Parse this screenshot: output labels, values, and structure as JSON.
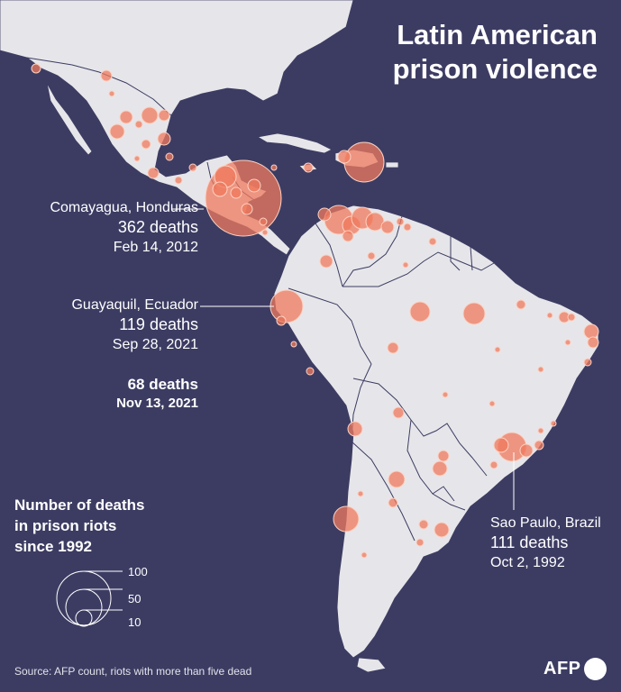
{
  "title": {
    "line1": "Latin American",
    "line2": "prison violence"
  },
  "callouts": {
    "honduras": {
      "place": "Comayagua, Honduras",
      "deaths": "362 deaths",
      "date": "Feb 14, 2012"
    },
    "ecuador": {
      "place": "Guayaquil, Ecuador",
      "deaths": "119 deaths",
      "date": "Sep 28, 2021"
    },
    "ecuador2": {
      "deaths": "68 deaths",
      "date": "Nov 13, 2021"
    },
    "brazil": {
      "place": "Sao Paulo, Brazil",
      "deaths": "111 deaths",
      "date": "Oct 2, 1992"
    }
  },
  "legend": {
    "line1": "Number of deaths",
    "line2": "in prison riots",
    "line3": "since 1992",
    "labels": [
      "100",
      "50",
      "10"
    ]
  },
  "source": "Source: AFP count, riots with more than five dead",
  "logo": "AFP",
  "colors": {
    "ocean": "#3c3c63",
    "land": "#e6e6ea",
    "border": "#3c3c63",
    "bubble_fill": "#ef7a5e",
    "bubble_stroke": "#fbd2c3",
    "text": "#ffffff"
  },
  "chart_data": {
    "type": "map-bubble",
    "highlighted": [
      {
        "place": "Comayagua, Honduras",
        "deaths": 362,
        "date": "Feb 14, 2012"
      },
      {
        "place": "Guayaquil, Ecuador",
        "deaths": 119,
        "date": "Sep 28, 2021"
      },
      {
        "place": "Guayaquil, Ecuador",
        "deaths": 68,
        "date": "Nov 13, 2021"
      },
      {
        "place": "Sao Paulo, Brazil",
        "deaths": 111,
        "date": "Oct 2, 1992"
      }
    ],
    "legend_sizes": [
      100,
      50,
      10
    ]
  }
}
